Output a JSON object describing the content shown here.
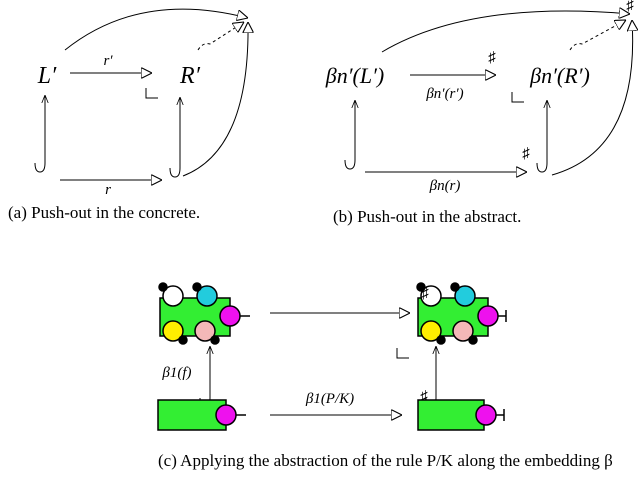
{
  "panel_a": {
    "caption": "(a) Push-out in the concrete.",
    "source": "L′",
    "target": "R′",
    "top_arrow": "r′",
    "bottom_arrow": "r"
  },
  "panel_b": {
    "caption": "(b) Push-out in the abstract.",
    "source": "βn′(L′)",
    "target": "βn′(R′)",
    "top_arrow": "βn′(r′)",
    "bottom_arrow": "βn(r)",
    "sharp": "♯"
  },
  "panel_c": {
    "caption": "(c) Applying the abstraction of the rule P/K along the embedding β",
    "left_arrow": "β1(f)",
    "bottom_arrow": "β1(P/K)",
    "sharp": "♯"
  }
}
